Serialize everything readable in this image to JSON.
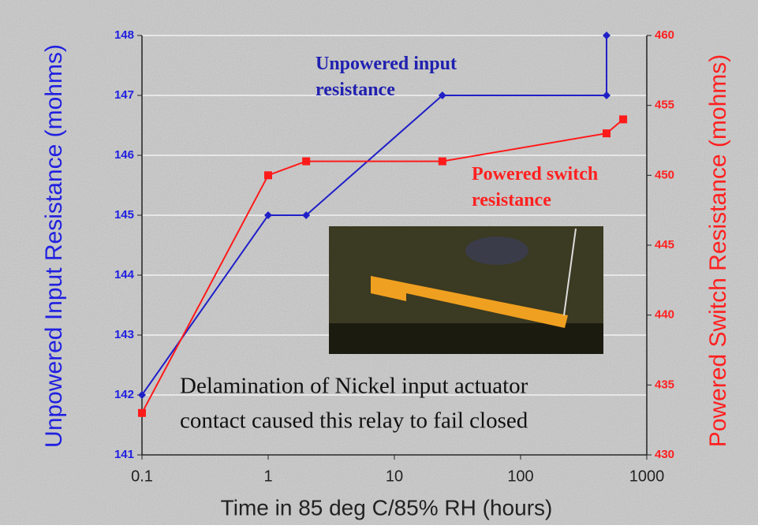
{
  "chart_data": {
    "type": "line",
    "x_label": "Time in 85 deg C/85% RH (hours)",
    "y_label": "Unpowered Input Resistance (mohms)",
    "y2_label": "Powered Switch Resistance (mohms)",
    "xscale": "log",
    "xlim": [
      0.1,
      1000
    ],
    "xticks": [
      0.1,
      1,
      10,
      100,
      1000
    ],
    "ylim": [
      141,
      148
    ],
    "yticks": [
      141,
      142,
      143,
      144,
      145,
      146,
      147,
      148
    ],
    "y2lim": [
      430,
      460
    ],
    "y2ticks": [
      430,
      435,
      440,
      445,
      450,
      455,
      460
    ],
    "grid": true,
    "series": [
      {
        "name": "Unpowered input resistance",
        "color": "#2020c8",
        "x": [
          0.1,
          1,
          2,
          24,
          480,
          480
        ],
        "values": [
          142,
          145,
          145,
          147,
          147,
          148
        ]
      },
      {
        "name": "Powered switch resistance",
        "color": "#ff1a1a",
        "axis": "y2",
        "x": [
          0.1,
          1,
          2,
          24,
          480,
          650
        ],
        "values": [
          433,
          450,
          451,
          451,
          453,
          454
        ]
      }
    ],
    "annotations": [
      {
        "lines": [
          "Delamination of Nickel input actuator",
          "contact caused this relay to fail closed"
        ]
      }
    ]
  }
}
